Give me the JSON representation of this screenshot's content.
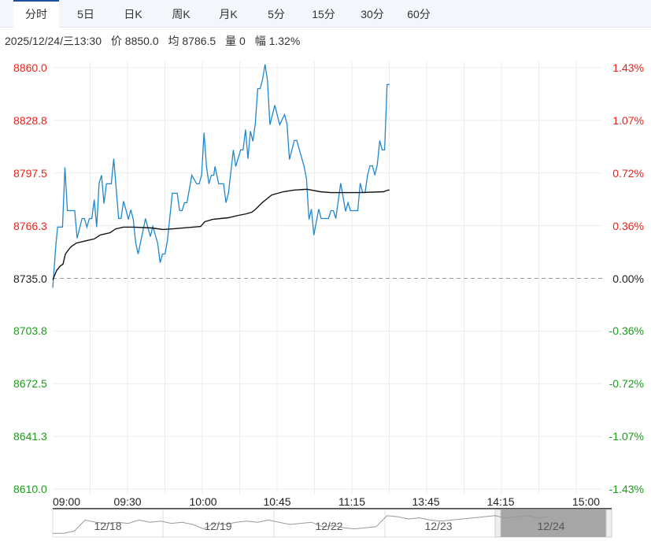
{
  "tabs": [
    {
      "label": "分时",
      "active": true
    },
    {
      "label": "5日"
    },
    {
      "label": "日K"
    },
    {
      "label": "周K"
    },
    {
      "label": "月K"
    },
    {
      "label": "5分"
    },
    {
      "label": "15分"
    },
    {
      "label": "30分"
    },
    {
      "label": "60分"
    }
  ],
  "info": {
    "datetime": "2025/12/24/三13:30",
    "price": "价 8850.0",
    "avg": "均 8786.5",
    "volume": "量 0",
    "change": "幅 1.32%"
  },
  "colors": {
    "up": "#e8231d",
    "down": "#1a9d1a",
    "price_line": "#1e87cf",
    "avg_line": "#111111",
    "base": "#555555"
  },
  "chart_data": {
    "type": "line",
    "title": "分时",
    "base_price": 8735.0,
    "ylim": [
      8610.0,
      8860.0
    ],
    "xlim_minutes": [
      0,
      225
    ],
    "y_ticks_left": [
      "8860.0",
      "8828.8",
      "8797.5",
      "8766.3",
      "8735.0",
      "8703.8",
      "8672.5",
      "8641.3",
      "8610.0"
    ],
    "y_ticks_right": [
      "1.43%",
      "1.07%",
      "0.72%",
      "0.36%",
      "0.00%",
      "-0.36%",
      "-0.72%",
      "-1.07%",
      "-1.43%"
    ],
    "x_ticks": [
      "09:00",
      "09:30",
      "10:00",
      "10:45",
      "11:15",
      "13:45",
      "14:15",
      "15:00"
    ],
    "grid": true,
    "series": [
      {
        "name": "价",
        "points": [
          [
            0,
            8729.4
          ],
          [
            1.3,
            8755.1
          ],
          [
            2,
            8765.4
          ],
          [
            4,
            8765.4
          ],
          [
            5,
            8800.9
          ],
          [
            6,
            8775.2
          ],
          [
            9,
            8775.2
          ],
          [
            10,
            8758.8
          ],
          [
            12,
            8770.5
          ],
          [
            13,
            8770.5
          ],
          [
            14,
            8765.4
          ],
          [
            15,
            8770.5
          ],
          [
            16,
            8770.5
          ],
          [
            17,
            8781.7
          ],
          [
            18,
            8765.4
          ],
          [
            19,
            8791.5
          ],
          [
            20,
            8796.2
          ],
          [
            21,
            8779.4
          ],
          [
            22,
            8791.1
          ],
          [
            24,
            8791.1
          ],
          [
            25,
            8806.0
          ],
          [
            27,
            8770.5
          ],
          [
            28,
            8770.5
          ],
          [
            29,
            8780.8
          ],
          [
            30,
            8775.7
          ],
          [
            31,
            8770.0
          ],
          [
            32,
            8775.7
          ],
          [
            33,
            8770.0
          ],
          [
            34,
            8756.0
          ],
          [
            35,
            8749.5
          ],
          [
            38,
            8770.5
          ],
          [
            40,
            8759.8
          ],
          [
            41,
            8765.8
          ],
          [
            43,
            8756.0
          ],
          [
            44,
            8744.3
          ],
          [
            45,
            8749.5
          ],
          [
            46,
            8749.5
          ],
          [
            47,
            8757.4
          ],
          [
            49,
            8785.5
          ],
          [
            51,
            8785.5
          ],
          [
            52,
            8775.2
          ],
          [
            53,
            8775.2
          ],
          [
            54,
            8779.9
          ],
          [
            55,
            8779.9
          ],
          [
            57,
            8796.2
          ],
          [
            59,
            8791.1
          ],
          [
            60,
            8791.1
          ],
          [
            61,
            8796.2
          ],
          [
            62,
            8821.4
          ],
          [
            63,
            8801.4
          ],
          [
            64,
            8791.1
          ],
          [
            65,
            8796.2
          ],
          [
            66,
            8796.2
          ],
          [
            66.5,
            8801.4
          ],
          [
            68,
            8791.1
          ],
          [
            70,
            8791.1
          ],
          [
            71,
            8779.9
          ],
          [
            72,
            8785.5
          ],
          [
            74,
            8811.2
          ],
          [
            75,
            8801.4
          ],
          [
            77,
            8811.2
          ],
          [
            78,
            8811.2
          ],
          [
            79,
            8823.3
          ],
          [
            80,
            8806.0
          ],
          [
            81,
            8822.4
          ],
          [
            82,
            8816.3
          ],
          [
            83,
            8826.6
          ],
          [
            84,
            8847.6
          ],
          [
            85,
            8847.6
          ],
          [
            86,
            8853.2
          ],
          [
            87,
            8862.0
          ],
          [
            88,
            8852.3
          ],
          [
            89,
            8826.1
          ],
          [
            91,
            8837.8
          ],
          [
            93,
            8826.1
          ],
          [
            95,
            8832.2
          ],
          [
            96,
            8826.6
          ],
          [
            97,
            8805.6
          ],
          [
            99,
            8816.8
          ],
          [
            100,
            8816.8
          ],
          [
            103,
            8801.4
          ],
          [
            104,
            8793.9
          ],
          [
            105,
            8770.0
          ],
          [
            106,
            8776.1
          ],
          [
            107,
            8760.7
          ],
          [
            109,
            8776.1
          ],
          [
            110,
            8770.5
          ],
          [
            113,
            8770.5
          ],
          [
            114,
            8775.2
          ],
          [
            115,
            8775.2
          ],
          [
            116,
            8770.5
          ],
          [
            118,
            8791.5
          ],
          [
            120,
            8774.7
          ],
          [
            121,
            8779.9
          ],
          [
            122,
            8775.2
          ],
          [
            125,
            8775.2
          ],
          [
            126,
            8791.5
          ],
          [
            127,
            8785.9
          ],
          [
            128,
            8785.9
          ],
          [
            129,
            8796.2
          ],
          [
            130,
            8801.8
          ],
          [
            131,
            8801.8
          ],
          [
            132,
            8796.2
          ],
          [
            133,
            8802.5
          ],
          [
            134,
            8816.8
          ],
          [
            135,
            8811.2
          ],
          [
            136,
            8811.2
          ],
          [
            137,
            8850.0
          ],
          [
            138,
            8850.0
          ]
        ]
      },
      {
        "name": "均",
        "points": [
          [
            0,
            8734.1
          ],
          [
            1.6,
            8739.7
          ],
          [
            3.2,
            8742.5
          ],
          [
            4.2,
            8743.4
          ],
          [
            5.2,
            8749.5
          ],
          [
            7.4,
            8753.7
          ],
          [
            9.7,
            8756.0
          ],
          [
            13.9,
            8757.4
          ],
          [
            17,
            8758.4
          ],
          [
            19.4,
            8760.7
          ],
          [
            23.5,
            8762.1
          ],
          [
            25.8,
            8764.4
          ],
          [
            29,
            8765.4
          ],
          [
            33.2,
            8765.4
          ],
          [
            40.6,
            8764.9
          ],
          [
            45.2,
            8764.0
          ],
          [
            49.4,
            8764.4
          ],
          [
            60.6,
            8765.8
          ],
          [
            62.3,
            8768.6
          ],
          [
            65.5,
            8770.0
          ],
          [
            71.9,
            8771.0
          ],
          [
            76.1,
            8772.4
          ],
          [
            79.4,
            8773.3
          ],
          [
            81.6,
            8774.3
          ],
          [
            83.2,
            8776.1
          ],
          [
            85.8,
            8779.9
          ],
          [
            89.7,
            8784.5
          ],
          [
            94.5,
            8786.4
          ],
          [
            98.7,
            8787.4
          ],
          [
            104.2,
            8787.9
          ],
          [
            109.7,
            8786.4
          ],
          [
            113.9,
            8785.9
          ],
          [
            125.8,
            8785.9
          ],
          [
            135.5,
            8786.4
          ],
          [
            137.4,
            8787.4
          ],
          [
            138,
            8787.4
          ]
        ]
      }
    ]
  },
  "navigator": {
    "days": [
      "12/18",
      "12/19",
      "12/22",
      "12/23",
      "12/24"
    ],
    "selected": "12/24",
    "values": [
      0.1,
      0.1,
      0.2,
      0.7,
      0.6,
      0.55,
      0.6,
      0.55,
      0.7,
      0.6,
      0.65,
      0.55,
      0.6,
      0.5,
      0.3,
      0.55,
      0.5,
      0.6,
      0.65,
      0.6,
      0.7,
      0.6,
      0.5,
      0.55,
      0.6,
      0.4,
      0.45,
      0.35,
      0.3,
      0.35,
      0.4,
      0.9,
      0.85,
      0.75,
      0.8,
      0.7,
      0.65,
      0.7,
      0.75,
      0.8,
      0.85,
      0.9,
      0.8,
      0.85,
      0.9,
      0.8,
      0.85
    ]
  }
}
